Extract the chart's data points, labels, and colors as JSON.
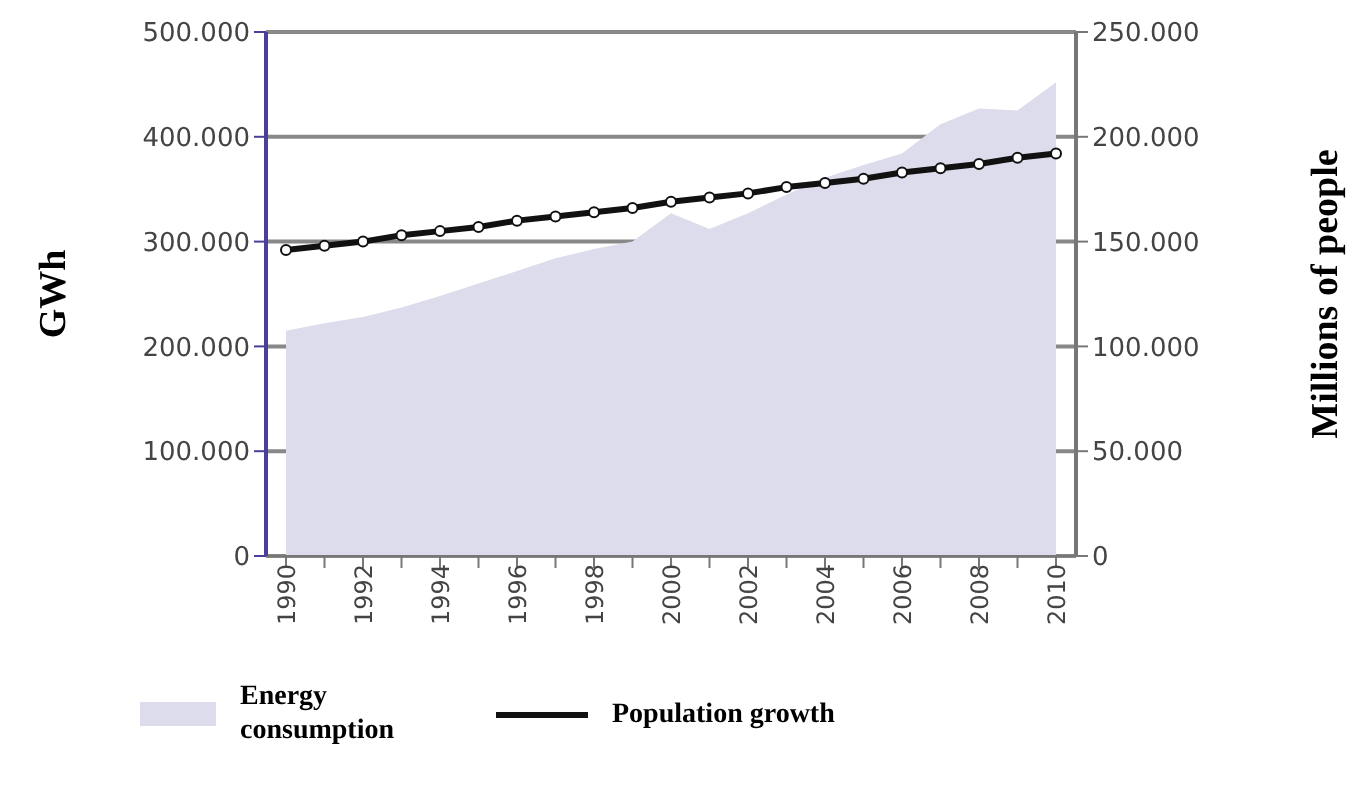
{
  "chart_data": {
    "type": "area",
    "ylabel": "GWh",
    "y2label": "Millions of people",
    "categories": [
      "1990",
      null,
      "1992",
      null,
      "1994",
      null,
      "1996",
      null,
      "1998",
      null,
      "2000",
      null,
      "2002",
      null,
      "2004",
      null,
      "2006",
      null,
      "2008",
      null,
      "2010"
    ],
    "series": [
      {
        "name": "Energy consumption",
        "color": "#dcdcec",
        "values": [
          215000,
          222000,
          228000,
          237000,
          248000,
          260000,
          272000,
          284000,
          293000,
          300000,
          327000,
          312000,
          327000,
          345000,
          361000,
          373000,
          384000,
          412000,
          427000,
          425000,
          452000
        ]
      },
      {
        "name": "Population growth",
        "type": "line",
        "axis": "y2",
        "color": "#111111",
        "marker": "circle",
        "values": [
          146000,
          148000,
          150000,
          153000,
          155000,
          157000,
          160000,
          162000,
          164000,
          166000,
          169000,
          171000,
          173000,
          176000,
          178000,
          180000,
          183000,
          185000,
          187000,
          190000,
          192000
        ]
      }
    ],
    "ylim": [
      0,
      500000
    ],
    "yticks": [
      {
        "value": 0,
        "label": "0"
      },
      {
        "value": 100000,
        "label": "100.000"
      },
      {
        "value": 200000,
        "label": "200.000"
      },
      {
        "value": 300000,
        "label": "300.000"
      },
      {
        "value": 400000,
        "label": "400.000"
      },
      {
        "value": 500000,
        "label": "500.000"
      }
    ],
    "y2lim": [
      0,
      250000
    ],
    "y2ticks": [
      {
        "value": 0,
        "label": "0"
      },
      {
        "value": 50000,
        "label": "50.000"
      },
      {
        "value": 100000,
        "label": "100.000"
      },
      {
        "value": 150000,
        "label": "150.000"
      },
      {
        "value": 200000,
        "label": "200.000"
      },
      {
        "value": 250000,
        "label": "250.000"
      }
    ],
    "grid": "y",
    "legend": "bottom"
  }
}
